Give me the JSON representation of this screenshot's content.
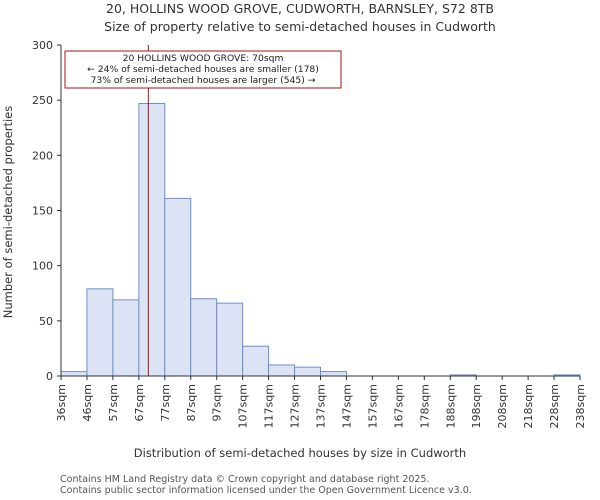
{
  "chart_data": {
    "type": "bar",
    "title": "20, HOLLINS WOOD GROVE, CUDWORTH, BARNSLEY, S72 8TB",
    "subtitle": "Size of property relative to semi-detached houses in Cudworth",
    "xlabel": "Distribution of semi-detached houses by size in Cudworth",
    "ylabel": "Number of semi-detached properties",
    "ylim": [
      0,
      300
    ],
    "yticks": [
      0,
      50,
      100,
      150,
      200,
      250,
      300
    ],
    "xticks": [
      "36sqm",
      "46sqm",
      "57sqm",
      "67sqm",
      "77sqm",
      "87sqm",
      "97sqm",
      "107sqm",
      "117sqm",
      "127sqm",
      "137sqm",
      "147sqm",
      "157sqm",
      "167sqm",
      "178sqm",
      "188sqm",
      "198sqm",
      "208sqm",
      "218sqm",
      "228sqm",
      "238sqm"
    ],
    "values": [
      4,
      79,
      69,
      247,
      161,
      70,
      66,
      27,
      10,
      8,
      4,
      0,
      0,
      0,
      0,
      1,
      0,
      0,
      0,
      1
    ],
    "bar_fill": "#dce3f5",
    "bar_edge": "#6d8fcc",
    "marker": {
      "value_sqm": 70,
      "color": "#aa1111",
      "lines": [
        "20 HOLLINS WOOD GROVE: 70sqm",
        "← 24% of semi-detached houses are smaller (178)",
        "73% of semi-detached houses are larger (545) →"
      ]
    }
  },
  "footer": {
    "line1": "Contains HM Land Registry data © Crown copyright and database right 2025.",
    "line2": "Contains public sector information licensed under the Open Government Licence v3.0."
  }
}
